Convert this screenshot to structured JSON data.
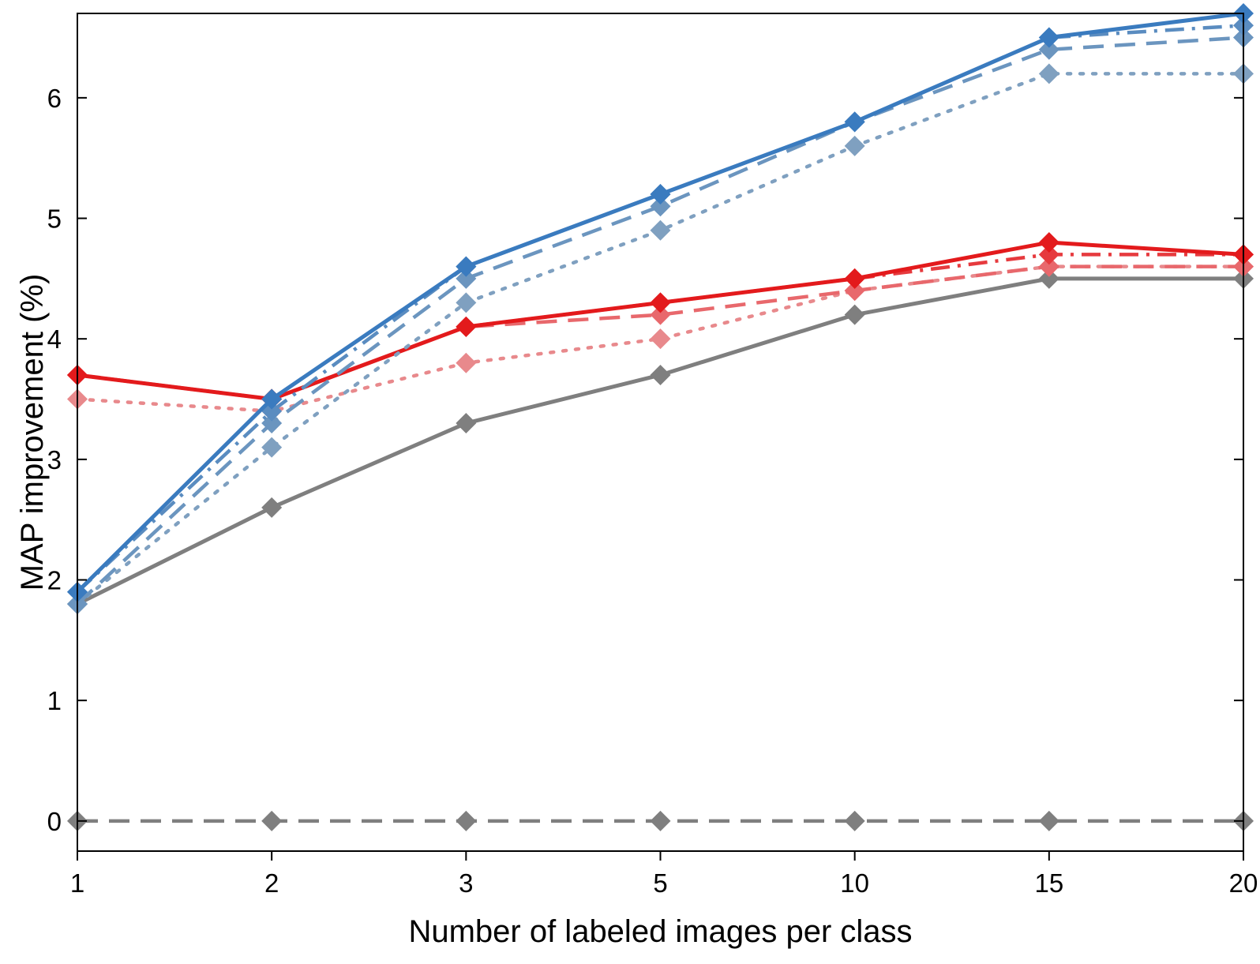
{
  "chart_data": {
    "type": "line",
    "title": "",
    "xlabel": "Number of labeled images per class",
    "ylabel": "MAP improvement (%)",
    "categories": [
      "1",
      "2",
      "3",
      "5",
      "10",
      "15",
      "20"
    ],
    "ylim": [
      -0.25,
      6.7
    ],
    "yticks": [
      0,
      1,
      2,
      3,
      4,
      5,
      6
    ],
    "grid": false,
    "legend": "none",
    "series": [
      {
        "name": "baseline",
        "color": "#7f7f7f",
        "style": "dashed",
        "opacity": 1.0,
        "values": [
          0,
          0,
          0,
          0,
          0,
          0,
          0
        ]
      },
      {
        "name": "gray solid",
        "color": "#7f7f7f",
        "style": "solid",
        "opacity": 1.0,
        "values": [
          1.8,
          2.6,
          3.3,
          3.7,
          4.2,
          4.5,
          4.5
        ]
      },
      {
        "name": "red dotted",
        "color": "#e8898c",
        "style": "dotted",
        "opacity": 1.0,
        "values": [
          3.5,
          3.4,
          3.8,
          4.0,
          4.4,
          4.6,
          4.6
        ]
      },
      {
        "name": "red dashed",
        "color": "#e8686c",
        "style": "dashed",
        "opacity": 1.0,
        "values": [
          3.7,
          3.5,
          4.1,
          4.2,
          4.4,
          4.6,
          4.6
        ]
      },
      {
        "name": "red dash-dot",
        "color": "#e63a3e",
        "style": "dashdot",
        "opacity": 1.0,
        "values": [
          3.7,
          3.5,
          4.1,
          4.3,
          4.5,
          4.7,
          4.7
        ]
      },
      {
        "name": "red solid",
        "color": "#e31a1c",
        "style": "solid",
        "opacity": 1.0,
        "values": [
          3.7,
          3.5,
          4.1,
          4.3,
          4.5,
          4.8,
          4.7
        ]
      },
      {
        "name": "blue dotted",
        "color": "#7fa0c0",
        "style": "dotted",
        "opacity": 1.0,
        "values": [
          1.8,
          3.1,
          4.3,
          4.9,
          5.6,
          6.2,
          6.2
        ]
      },
      {
        "name": "blue dashed",
        "color": "#6b95bf",
        "style": "dashed",
        "opacity": 1.0,
        "values": [
          1.8,
          3.3,
          4.5,
          5.1,
          5.8,
          6.4,
          6.5
        ]
      },
      {
        "name": "blue dash-dot",
        "color": "#5a8cc0",
        "style": "dashdot",
        "opacity": 1.0,
        "values": [
          1.9,
          3.4,
          4.6,
          5.2,
          5.8,
          6.5,
          6.6
        ]
      },
      {
        "name": "blue solid",
        "color": "#3a7bbf",
        "style": "solid",
        "opacity": 1.0,
        "values": [
          1.9,
          3.5,
          4.6,
          5.2,
          5.8,
          6.5,
          6.7
        ]
      }
    ]
  }
}
